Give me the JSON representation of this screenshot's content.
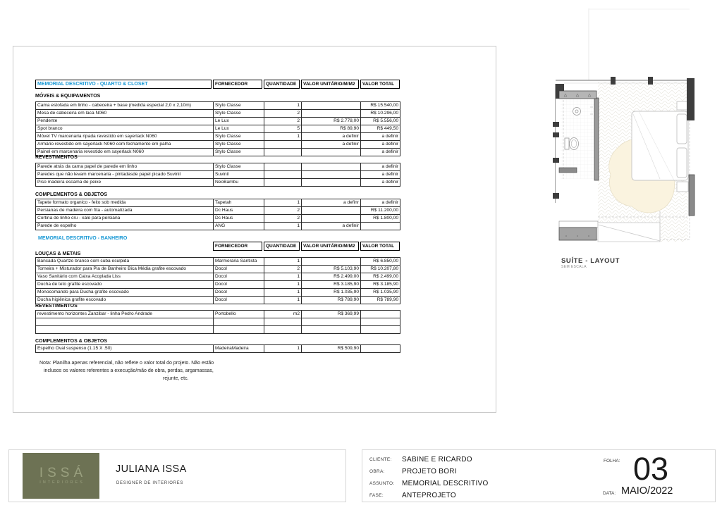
{
  "page": {
    "plan_title": "SUÍTE - LAYOUT",
    "plan_subtitle": "SEM ESCALA",
    "note_lines": [
      "Nota: Planilha apenas referencial, não reflete o valor total do projeto. Não estão",
      "inclusos os valores referentes a execução/mão de obra, perdas, argamassas,",
      "rejunte, etc."
    ]
  },
  "columns": [
    "FORNECEDOR",
    "QUANTIDADE",
    "VALOR UNITÁRIO/M/M2",
    "VALOR TOTAL"
  ],
  "tables": [
    {
      "title": "MEMORIAL DESCRITIVO - QUARTO & CLOSET",
      "sections": [
        {
          "label": "MÓVEIS & EQUIPAMENTOS",
          "rows": [
            [
              "Cama estofada em linho - cabeceira + base  (medida especial 2,0 x 2,10m)",
              "Stylo Classe",
              "1",
              "",
              "R$ 15.540,00"
            ],
            [
              "Mesa de cabeceira em laca N060",
              "Stylo Classe",
              "2",
              "",
              "R$ 10.296,00"
            ],
            [
              "Pendente",
              "Le Lux",
              "2",
              "R$ 2.778,00",
              "R$ 5.556,00"
            ],
            [
              "Spot branco",
              "Le Lux",
              "5",
              "R$ 89,90",
              "R$ 449,50"
            ],
            [
              "Móvel TV marcenaria ripada revestido em sayerlack N060",
              "Stylo Classe",
              "1",
              "a definir",
              "a definir"
            ],
            [
              "Armário revestido em sayerlack N060 com fechamento em palha",
              "Stylo Classe",
              "",
              "a definir",
              "a definir"
            ],
            [
              "Painel em marcenaria revestido em sayerlack N060",
              "Stylo Classe",
              "",
              "",
              "a definir"
            ]
          ]
        },
        {
          "label": "REVESTIMENTOS",
          "rows": [
            [
              "Parede atrás da cama papel de parede em linho",
              "Stylo Classe",
              "",
              "",
              "a definir"
            ],
            [
              "Paredes que não levam marcenaria - pintadasde papel picado Suvinil",
              "Suvinil",
              "",
              "",
              "a definir"
            ],
            [
              "Piso madeira escama de peixe",
              "NeoBambu",
              "",
              "",
              "a definir"
            ]
          ]
        },
        {
          "label": "COMPLEMENTOS & OBJETOS",
          "rows": [
            [
              "Tapete  formato organico - feito sob medida",
              "Tapetah",
              "1",
              "a definr",
              "a definir"
            ],
            [
              "Persianas de madeira com fita  - automatizada",
              "Dc Haus",
              "2",
              "",
              "R$ 11.200,00"
            ],
            [
              "Cortina de linho cru - xale para persiana",
              "Dc Haus",
              "2",
              "",
              "R$ 1.800,00"
            ],
            [
              "Parede de espelho",
              "ANG",
              "1",
              "a definir",
              ""
            ]
          ]
        }
      ]
    },
    {
      "title": "MEMORIAL DESCRITIVO - BANHEIRO",
      "sections": [
        {
          "label": "LOUÇAS & METAIS",
          "rows": [
            [
              "Bancada Quartzo branco com cuba esulpida",
              "Marmoraria Santista",
              "1",
              "",
              "R$ 6.850,00"
            ],
            [
              "Torneira + Misturador para Pia de Banheiro Bica Média grafite escovado",
              "Docol",
              "2",
              "R$ 5.103,90",
              "R$ 10.207,80"
            ],
            [
              "Vaso Sanitário com Caixa Acoplada Liss",
              "Docol",
              "1",
              "R$ 2.499,00",
              "R$ 2.499,00"
            ],
            [
              "Ducha de teto grafite escovado",
              "Docol",
              "1",
              "R$ 3.185,90",
              "R$ 3.185,90"
            ],
            [
              "Monocomando para Ducha grafite escovado",
              "Docol",
              "1",
              "R$ 1.035,90",
              "R$ 1.035,90"
            ],
            [
              "Ducha higiênica grafite escovado",
              "Docol",
              "1",
              "R$ 789,90",
              "R$ 789,90"
            ]
          ]
        },
        {
          "label": "REVESTIMENTOS",
          "rows": [
            [
              "revestimento horizontes Zanzibar - linha Pedro Andrade",
              "Portobello",
              "m2",
              "R$ 369,99",
              ""
            ],
            [
              "",
              "",
              "",
              "",
              ""
            ],
            [
              "",
              "",
              "",
              "",
              ""
            ]
          ]
        },
        {
          "label": "COMPLEMENTOS & OBJETOS",
          "rows": [
            [
              "Espelho Oval suspenso (1.15 X .50)",
              "MadeiraMadeira",
              "1",
              "R$ 509,90",
              ""
            ]
          ]
        }
      ]
    }
  ],
  "titleblock": {
    "logo_line1": "ISSÁ",
    "logo_line2": "INTERIORES",
    "name": "JULIANA ISSA",
    "role": "DESIGNER DE INTERIORES",
    "fields": [
      {
        "label": "CLIENTE:",
        "value": "SABINE E RICARDO"
      },
      {
        "label": "OBRA:",
        "value": "PROJETO BORI"
      },
      {
        "label": "ASSUNTO:",
        "value": "MEMORIAL DESCRITIVO"
      },
      {
        "label": "FASE:",
        "value": "ANTEPROJETO"
      }
    ],
    "folha_label": "FOLHA:",
    "folha_value": "03",
    "data_label": "DATA:",
    "data_value": "MAIO/2022"
  },
  "colors": {
    "accent_blue": "#1798d5",
    "logo_green": "#6d7254",
    "wall_dark": "#3d3d3d",
    "rug_cream": "#faf3df"
  }
}
